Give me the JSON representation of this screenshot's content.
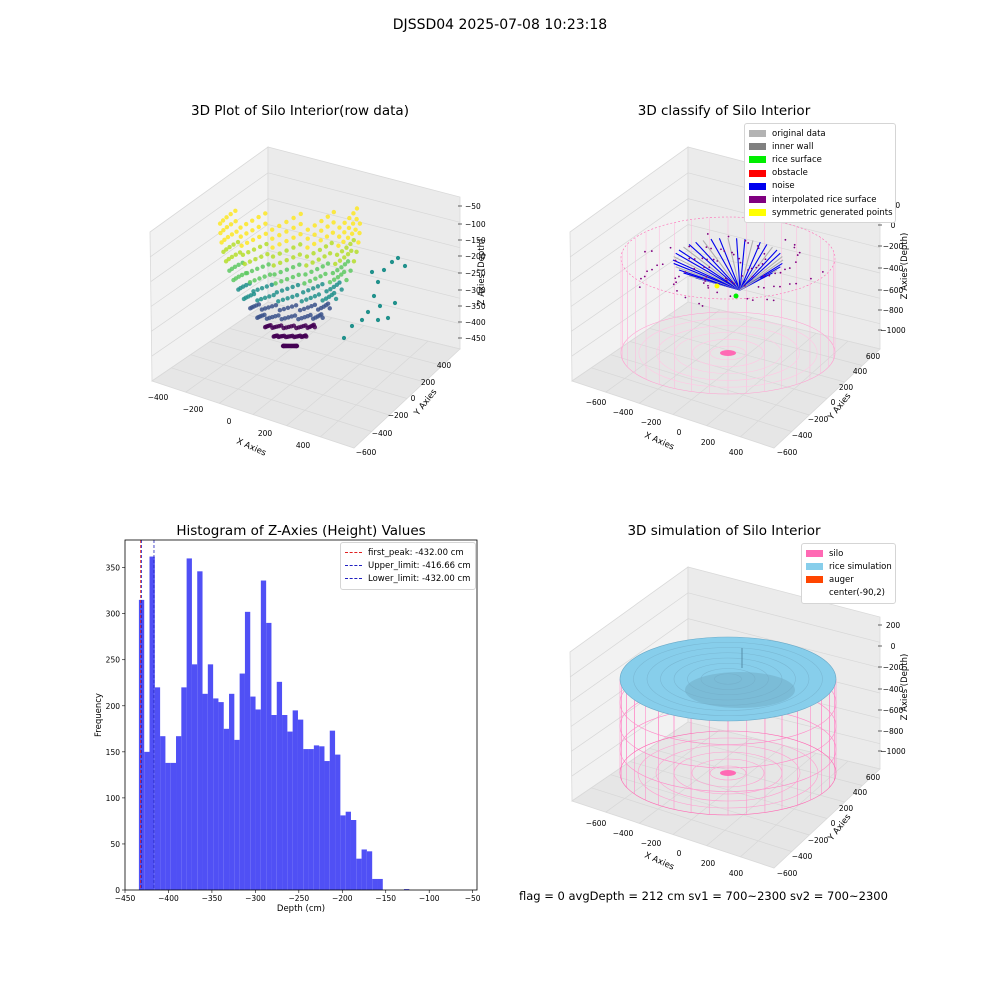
{
  "suptitle": "DJSSD04 2025-07-08 10:23:18",
  "chart_data": [
    {
      "type": "scatter",
      "title": "3D Plot of Silo Interior(row data)",
      "xlabel": "X Axies",
      "ylabel": "Y Axies",
      "zlabel": "Z Axies (Depth)",
      "xticks": [
        "−400",
        "−200",
        "0",
        "200",
        "400"
      ],
      "yticks": [
        "−600",
        "−400",
        "−200",
        "0",
        "200",
        "400"
      ],
      "zticks": [
        "−50",
        "−100",
        "−150",
        "−200",
        "−250",
        "−300",
        "−350",
        "−400",
        "−450"
      ],
      "colormap": "viridis"
    },
    {
      "type": "scatter",
      "title": "3D classify of Silo Interior",
      "xlabel": "X Axies",
      "ylabel": "Y Axies",
      "zlabel": "Z Axies (Depth)",
      "xticks": [
        "−600",
        "−400",
        "−200",
        "0",
        "200",
        "400"
      ],
      "yticks": [
        "−600",
        "−400",
        "−200",
        "0",
        "200",
        "400",
        "600"
      ],
      "zticks": [
        "200",
        "0",
        "−200",
        "−400",
        "−600",
        "−800",
        "−1000"
      ],
      "legend": [
        {
          "label": "original data",
          "color": "#b3b3b3"
        },
        {
          "label": "inner wall",
          "color": "#808080"
        },
        {
          "label": "rice surface",
          "color": "#00ee00"
        },
        {
          "label": "obstacle",
          "color": "#ff0000"
        },
        {
          "label": "noise",
          "color": "#0000ee"
        },
        {
          "label": "interpolated rice surface",
          "color": "#800080"
        },
        {
          "label": "symmetric generated points",
          "color": "#ffff00"
        }
      ]
    },
    {
      "type": "bar",
      "title": "Histogram of Z-Axies (Height) Values",
      "xlabel": "Depth (cm)",
      "ylabel": "Frequency",
      "xlim": [
        -450,
        -45
      ],
      "ylim": [
        0,
        380
      ],
      "xticks": [
        "−450",
        "−400",
        "−350",
        "−300",
        "−250",
        "−200",
        "−150",
        "−100",
        "−50"
      ],
      "xtick_values": [
        -450,
        -400,
        -350,
        -300,
        -250,
        -200,
        -150,
        -100,
        -50
      ],
      "yticks": [
        "0",
        "50",
        "100",
        "150",
        "200",
        "250",
        "300",
        "350"
      ],
      "ytick_values": [
        0,
        50,
        100,
        150,
        200,
        250,
        300,
        350
      ],
      "bin_start": -434,
      "bin_width": 6.1,
      "values": [
        315,
        150,
        362,
        220,
        167,
        138,
        138,
        167,
        220,
        360,
        245,
        346,
        213,
        245,
        208,
        204,
        175,
        213,
        163,
        235,
        302,
        210,
        196,
        336,
        290,
        190,
        226,
        190,
        172,
        195,
        185,
        153,
        153,
        157,
        156,
        140,
        173,
        147,
        81,
        85,
        76,
        34,
        44,
        42,
        12,
        12,
        0,
        0,
        0,
        0,
        1
      ],
      "bar_color": "#5050f5",
      "vlines": [
        {
          "label": "first_peak: -432.00 cm",
          "x": -432.0,
          "color": "#e02020"
        },
        {
          "label": "Upper_limit: -416.66 cm",
          "x": -416.66,
          "color": "#2020c0"
        },
        {
          "label": "Lower_limit: -432.00 cm",
          "x": -432.0,
          "color": "#2020c0"
        }
      ]
    },
    {
      "type": "scatter",
      "title": "3D simulation of Silo Interior",
      "xlabel": "X Axies",
      "ylabel": "Y Axies",
      "zlabel": "Z Axies (Depth)",
      "xticks": [
        "−600",
        "−400",
        "−200",
        "0",
        "200",
        "400"
      ],
      "yticks": [
        "−600",
        "−400",
        "−200",
        "0",
        "200",
        "400",
        "600"
      ],
      "zticks": [
        "200",
        "0",
        "−200",
        "−400",
        "−600",
        "−800",
        "−1000"
      ],
      "legend": [
        {
          "label": "silo",
          "color": "#ff69b4"
        },
        {
          "label": "rice simulation",
          "color": "#87ceeb"
        },
        {
          "label": "auger",
          "color": "#ff4500"
        },
        {
          "label": "center(-90,2)",
          "color": ""
        }
      ]
    }
  ],
  "status_text": "flag = 0     avgDepth = 212 cm  sv1 = 700~2300  sv2 = 700~2300"
}
